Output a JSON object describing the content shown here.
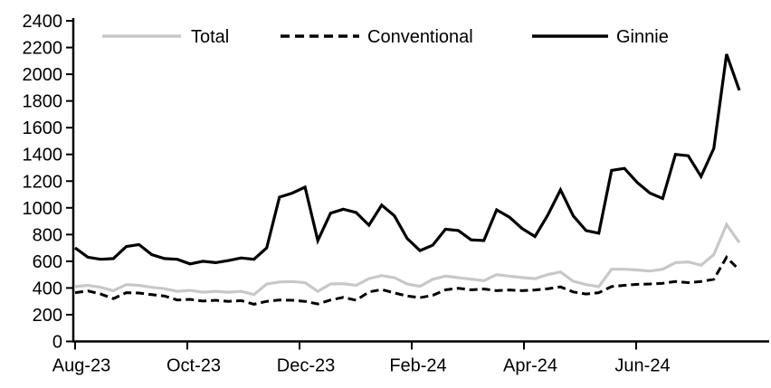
{
  "chart_data": {
    "type": "line",
    "title": "",
    "xlabel": "",
    "ylabel": "",
    "grid": false,
    "legend_position": "top",
    "x_axis": {
      "frequency": "weekly",
      "range_start": "Aug-23",
      "range_end": "Aug-24",
      "tick_labels": [
        "Aug-23",
        "Oct-23",
        "Dec-23",
        "Feb-24",
        "Apr-24",
        "Jun-24"
      ]
    },
    "y_axis": {
      "min": 0,
      "max": 2400,
      "tick_step": 200,
      "tick_labels": [
        "0",
        "200",
        "400",
        "600",
        "800",
        "1000",
        "1200",
        "1400",
        "1600",
        "1800",
        "2000",
        "2200",
        "2400"
      ]
    },
    "series": [
      {
        "name": "Total",
        "color": "#c8c8c8",
        "style": "solid",
        "values": [
          410,
          420,
          405,
          380,
          425,
          420,
          405,
          395,
          375,
          382,
          368,
          375,
          368,
          375,
          350,
          430,
          445,
          448,
          440,
          375,
          430,
          432,
          420,
          470,
          493,
          477,
          430,
          412,
          465,
          489,
          477,
          466,
          455,
          500,
          489,
          478,
          470,
          500,
          520,
          450,
          425,
          410,
          540,
          540,
          535,
          527,
          540,
          590,
          595,
          570,
          650,
          875,
          740
        ]
      },
      {
        "name": "Conventional",
        "color": "#000000",
        "style": "dashed",
        "values": [
          365,
          378,
          355,
          320,
          365,
          362,
          350,
          340,
          310,
          315,
          302,
          308,
          300,
          305,
          278,
          300,
          310,
          308,
          300,
          280,
          310,
          330,
          308,
          370,
          388,
          363,
          340,
          328,
          345,
          386,
          398,
          386,
          393,
          380,
          385,
          380,
          385,
          395,
          408,
          370,
          355,
          365,
          410,
          420,
          427,
          430,
          435,
          448,
          440,
          448,
          465,
          630,
          535
        ]
      },
      {
        "name": "Ginnie",
        "color": "#000000",
        "style": "solid",
        "values": [
          700,
          630,
          615,
          620,
          710,
          725,
          650,
          620,
          615,
          580,
          600,
          590,
          605,
          625,
          615,
          700,
          1080,
          1110,
          1155,
          755,
          960,
          990,
          965,
          870,
          1020,
          940,
          770,
          680,
          720,
          840,
          830,
          760,
          755,
          985,
          930,
          845,
          785,
          945,
          1135,
          940,
          830,
          810,
          1280,
          1295,
          1190,
          1110,
          1070,
          1400,
          1390,
          1235,
          1445,
          2150,
          1880
        ]
      }
    ]
  },
  "legend": {
    "items": [
      {
        "label": "Total"
      },
      {
        "label": "Conventional"
      },
      {
        "label": "Ginnie"
      }
    ]
  },
  "colors": {
    "background": "#ffffff",
    "axis": "#000000",
    "text": "#000000",
    "total_line": "#c8c8c8",
    "conventional_line": "#000000",
    "ginnie_line": "#000000"
  }
}
